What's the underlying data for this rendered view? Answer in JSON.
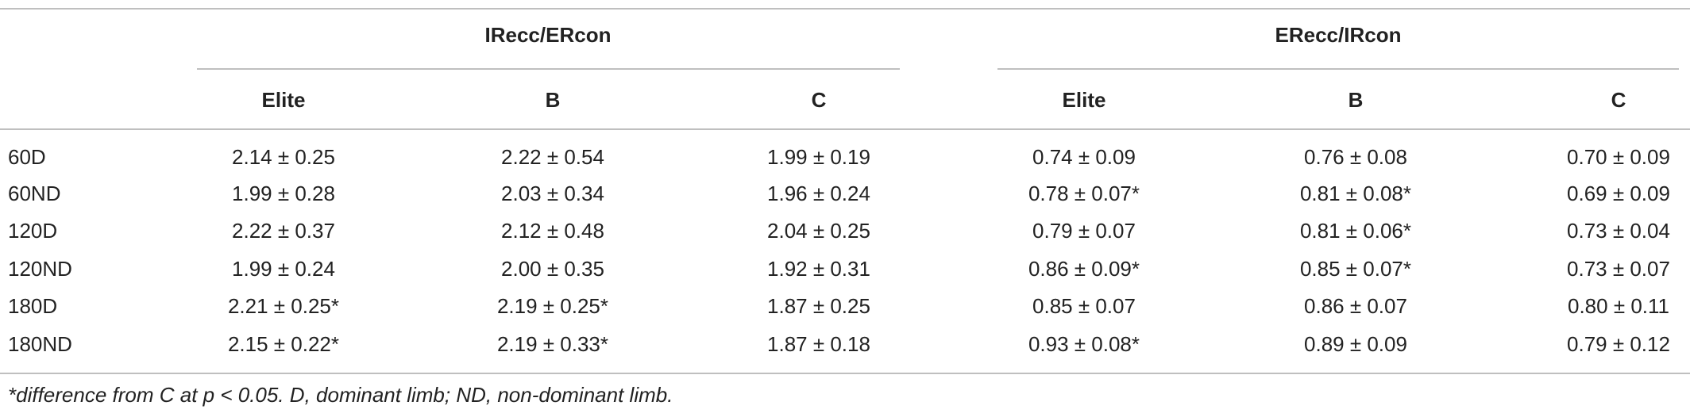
{
  "table": {
    "groups": [
      "IRecc/ERcon",
      "ERecc/IRcon"
    ],
    "columns": [
      "Elite",
      "B",
      "C",
      "Elite",
      "B",
      "C"
    ],
    "rows": [
      {
        "label": "60D",
        "cells": [
          "2.14 ± 0.25",
          "2.22 ± 0.54",
          "1.99 ± 0.19",
          "0.74 ± 0.09",
          "0.76 ± 0.08",
          "0.70 ± 0.09"
        ]
      },
      {
        "label": "60ND",
        "cells": [
          "1.99 ± 0.28",
          "2.03 ± 0.34",
          "1.96 ± 0.24",
          "0.78 ± 0.07*",
          "0.81 ± 0.08*",
          "0.69 ± 0.09"
        ]
      },
      {
        "label": "120D",
        "cells": [
          "2.22 ± 0.37",
          "2.12 ± 0.48",
          "2.04 ± 0.25",
          "0.79 ± 0.07",
          "0.81 ± 0.06*",
          "0.73 ± 0.04"
        ]
      },
      {
        "label": "120ND",
        "cells": [
          "1.99 ± 0.24",
          "2.00 ± 0.35",
          "1.92 ± 0.31",
          "0.86 ± 0.09*",
          "0.85 ± 0.07*",
          "0.73 ± 0.07"
        ]
      },
      {
        "label": "180D",
        "cells": [
          "2.21 ± 0.25*",
          "2.19 ± 0.25*",
          "1.87 ± 0.25",
          "0.85 ± 0.07",
          "0.86 ± 0.07",
          "0.80 ± 0.11"
        ]
      },
      {
        "label": "180ND",
        "cells": [
          "2.15 ± 0.22*",
          "2.19 ± 0.33*",
          "1.87 ± 0.18",
          "0.93 ± 0.08*",
          "0.89 ± 0.09",
          "0.79 ± 0.12"
        ]
      }
    ]
  },
  "footnote": "*difference from C at p < 0.05. D, dominant limb; ND, non-dominant limb."
}
